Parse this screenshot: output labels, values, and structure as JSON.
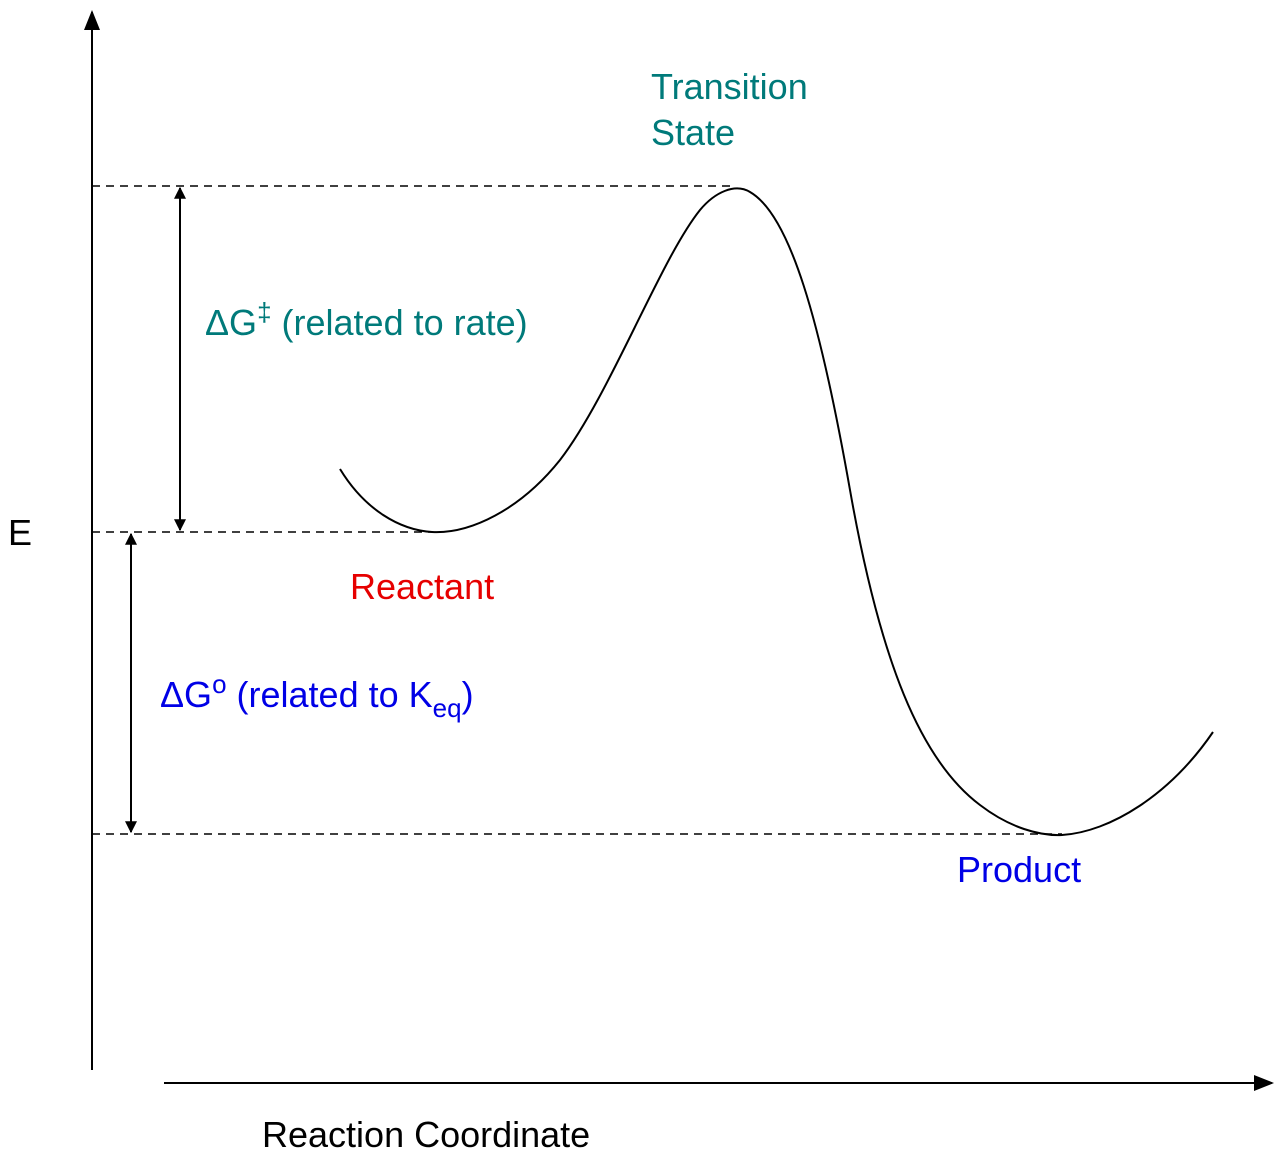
{
  "colors": {
    "teal": "#007a7a",
    "blue": "#0000e6",
    "red": "#e60000",
    "black": "#000000"
  },
  "axes": {
    "y_label": "E",
    "x_label": "Reaction Coordinate"
  },
  "labels": {
    "transition_state_line1": "Transition",
    "transition_state_line2": "State",
    "reactant": "Reactant",
    "product": "Product",
    "activation_energy": {
      "symbol": "ΔG",
      "superscript": "‡",
      "text": " (related to rate)"
    },
    "standard_free_energy": {
      "symbol": "ΔG",
      "superscript": "o",
      "text": " (related to K",
      "subscript": "eq",
      "close": ")"
    }
  }
}
